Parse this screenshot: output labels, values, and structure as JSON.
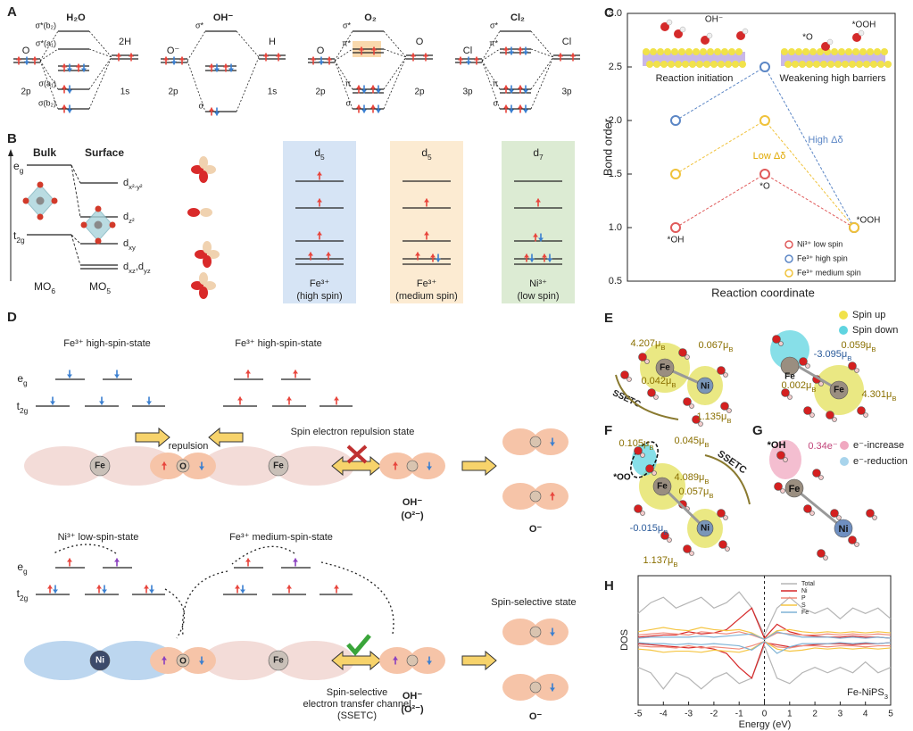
{
  "panel_labels": [
    "A",
    "B",
    "C",
    "D",
    "E",
    "F",
    "G",
    "H"
  ],
  "panel_a": [
    {
      "title": "H₂O",
      "left_atom": "O",
      "right_atom": "2H",
      "left_orbital": "2p",
      "right_orbital": "1s",
      "levels": [
        "σ*(b₂)",
        "σ*(a₁)",
        "σ(a₁)",
        "σ(b₂)"
      ]
    },
    {
      "title": "OH⁻",
      "left_atom": "O⁻",
      "right_atom": "H",
      "left_orbital": "2p",
      "right_orbital": "1s",
      "levels": [
        "σ*",
        "σ"
      ]
    },
    {
      "title": "O₂",
      "left_atom": "O",
      "right_atom": "O",
      "left_orbital": "2p",
      "right_orbital": "2p",
      "levels": [
        "σ*",
        "π*",
        "π",
        "σ"
      ]
    },
    {
      "title": "Cl₂",
      "left_atom": "Cl",
      "right_atom": "Cl",
      "left_orbital": "3p",
      "right_orbital": "3p",
      "levels": [
        "σ*",
        "π*",
        "π",
        "σ"
      ]
    }
  ],
  "panel_b": {
    "bulk": "Bulk",
    "surface": "Surface",
    "eg": [
      {
        "t": "e"
      },
      {
        "sub": "g"
      }
    ],
    "t2g": [
      {
        "t": "t"
      },
      {
        "sub": "2g"
      }
    ],
    "orbitals": [
      [
        {
          "t": "d"
        },
        {
          "sub": "x²-y²"
        }
      ],
      [
        {
          "t": "d"
        },
        {
          "sub": "z²"
        }
      ],
      [
        {
          "t": "d"
        },
        {
          "sub": "xy"
        }
      ],
      [
        {
          "t": "d"
        },
        {
          "sub": "xz"
        },
        {
          "t": ",d"
        },
        {
          "sub": "yz"
        }
      ]
    ],
    "mo6": [
      {
        "t": "MO"
      },
      {
        "sub": "6"
      }
    ],
    "mo5": [
      {
        "t": "MO"
      },
      {
        "sub": "5"
      }
    ],
    "columns": [
      {
        "config": [
          {
            "t": "d"
          },
          {
            "sub": "5"
          }
        ],
        "ion": "Fe³⁺",
        "spin": "(high spin)",
        "color": "#d6e4f5"
      },
      {
        "config": [
          {
            "t": "d"
          },
          {
            "sub": "5"
          }
        ],
        "ion": "Fe³⁺",
        "spin": "(medium spin)",
        "color": "#fcebd2"
      },
      {
        "config": [
          {
            "t": "d"
          },
          {
            "sub": "7"
          }
        ],
        "ion": "Ni³⁺",
        "spin": "(low spin)",
        "color": "#dcebd3"
      }
    ]
  },
  "chart_data": [
    {
      "type": "line",
      "ylabel": "Bond order",
      "xlabel": "Reaction coordinate",
      "categories": [
        "*OH",
        "*O",
        "*OOH"
      ],
      "ylim": [
        0.5,
        3.0
      ],
      "yticks": [
        0.5,
        {
          "value": 1,
          "label": "1.0"
        },
        1.5,
        {
          "value": 2,
          "label": "2.0"
        },
        2.5,
        {
          "value": 3,
          "label": "3.0"
        }
      ],
      "series": [
        {
          "name": "Ni³⁺ low spin",
          "color": "#e05a5a",
          "values": [
            1.0,
            1.5,
            1.0
          ]
        },
        {
          "name": "Fe³⁺ high spin",
          "color": "#5b86c5",
          "values": [
            2.0,
            2.5,
            1.0
          ]
        },
        {
          "name": "Fe³⁺ medium spin",
          "color": "#f0c23a",
          "values": [
            1.5,
            2.0,
            1.0
          ]
        }
      ],
      "annotations": [
        {
          "text": "High Δδ",
          "color": "#5b86c5"
        },
        {
          "text": "Low Δδ",
          "color": "#e0a800"
        }
      ],
      "inset_labels": [
        "OH⁻",
        "*O",
        "*OOH",
        "Reaction initiation",
        "Weakening high barriers"
      ]
    },
    {
      "type": "line",
      "ylabel": "DOS",
      "xlabel": "Energy (eV)",
      "annotation": [
        {
          "t": "Fe-NiPS"
        },
        {
          "sub": "3"
        }
      ],
      "x": [
        -5,
        -4.5,
        -4,
        -3.5,
        -3,
        -2.5,
        -2,
        -1.5,
        -1,
        -0.5,
        0,
        0.5,
        1,
        1.5,
        2,
        2.5,
        3,
        3.5,
        4,
        4.5,
        5
      ],
      "xlim": [
        -5,
        5
      ],
      "xticks": [
        -5,
        -4,
        -3,
        -2,
        -1,
        0,
        1,
        2,
        3,
        4,
        5
      ],
      "ylim": [
        -6,
        6
      ],
      "series": [
        {
          "name": "Total",
          "color": "#b5b5b5",
          "values": [
            2.5,
            3.5,
            4.0,
            3.0,
            3.5,
            4.0,
            3.0,
            3.5,
            4.5,
            3.0,
            0.5,
            3.0,
            4.0,
            3.0,
            2.5,
            3.0,
            2.0,
            3.0,
            2.5,
            3.0,
            2.0
          ],
          "values_down": [
            -2.5,
            -3.0,
            -4.5,
            -3.0,
            -3.5,
            -4.5,
            -3.5,
            -3.0,
            -4.0,
            -3.5,
            -0.5,
            -3.5,
            -4.0,
            -3.0,
            -2.5,
            -3.0,
            -2.5,
            -3.0,
            -2.0,
            -3.0,
            -2.5
          ]
        },
        {
          "name": "Ni",
          "color": "#d62728",
          "values": [
            0.3,
            0.4,
            0.5,
            0.5,
            0.8,
            0.6,
            0.7,
            1.0,
            2.0,
            3.0,
            0.2,
            1.5,
            0.8,
            0.5,
            0.4,
            0.3,
            0.3,
            0.4,
            0.3,
            0.3,
            0.2
          ],
          "values_down": [
            -0.3,
            -0.4,
            -0.5,
            -0.6,
            -0.7,
            -0.6,
            -0.8,
            -1.2,
            -2.5,
            -3.5,
            -0.2,
            -0.4,
            -0.6,
            -0.5,
            -0.4,
            -0.3,
            -0.3,
            -0.4,
            -0.3,
            -0.3,
            -0.2
          ]
        },
        {
          "name": "P",
          "color": "#f08a7a",
          "values": [
            0.5,
            0.6,
            0.7,
            0.6,
            0.5,
            0.8,
            0.7,
            0.6,
            0.8,
            0.5,
            0.1,
            0.7,
            0.6,
            0.5,
            0.5,
            0.6,
            0.5,
            0.6,
            0.5,
            0.6,
            0.5
          ],
          "values_down": [
            -0.5,
            -0.6,
            -0.6,
            -0.7,
            -0.5,
            -0.7,
            -0.6,
            -0.7,
            -0.8,
            -0.5,
            -0.1,
            -0.6,
            -0.7,
            -0.5,
            -0.5,
            -0.6,
            -0.5,
            -0.5,
            -0.6,
            -0.5,
            -0.5
          ]
        },
        {
          "name": "S",
          "color": "#f5c542",
          "values": [
            0.8,
            1.0,
            1.2,
            1.0,
            0.9,
            1.2,
            1.0,
            0.9,
            1.0,
            0.7,
            0.1,
            0.9,
            1.0,
            0.8,
            0.7,
            0.8,
            0.7,
            0.8,
            0.7,
            0.8,
            0.7
          ],
          "values_down": [
            -0.8,
            -0.9,
            -1.1,
            -1.0,
            -1.0,
            -1.1,
            -0.9,
            -1.0,
            -1.1,
            -0.8,
            -0.1,
            -0.8,
            -1.0,
            -0.9,
            -0.7,
            -0.8,
            -0.7,
            -0.8,
            -0.7,
            -0.8,
            -0.7
          ]
        },
        {
          "name": "Fe",
          "color": "#7fb3d5",
          "values": [
            0.2,
            0.3,
            0.3,
            0.3,
            0.3,
            0.4,
            0.3,
            0.4,
            0.5,
            0.6,
            0.1,
            0.8,
            0.5,
            0.3,
            0.3,
            0.3,
            0.2,
            0.3,
            0.2,
            0.3,
            0.2
          ],
          "values_down": [
            -0.2,
            -0.3,
            -0.3,
            -0.4,
            -0.3,
            -0.4,
            -0.3,
            -0.4,
            -0.5,
            -0.9,
            -0.1,
            -1.2,
            -0.6,
            -0.3,
            -0.3,
            -0.3,
            -0.2,
            -0.3,
            -0.2,
            -0.3,
            -0.2
          ]
        }
      ]
    }
  ],
  "panel_d": {
    "eg": [
      {
        "t": "e"
      },
      {
        "sub": "g"
      }
    ],
    "t2g": [
      {
        "t": "t"
      },
      {
        "sub": "2g"
      }
    ],
    "top": {
      "left_state": "Fe³⁺ high-spin-state",
      "right_state": "Fe³⁺ high-spin-state",
      "repulsion": "repulsion",
      "state": "Spin electron repulsion state",
      "metal": "Fe",
      "oxygen": "O",
      "metal2": "Fe",
      "oh": "OH⁻",
      "o2": "(O²⁻)",
      "o_minus": "O⁻"
    },
    "bottom": {
      "left_state": "Ni³⁺ low-spin-state",
      "right_state": "Fe³⁺ medium-spin-state",
      "state": "Spin-selective state",
      "metal": "Ni",
      "oxygen": "O",
      "metal2": "Fe",
      "oh": "OH⁻",
      "o2": "(O²⁻)",
      "o_minus": "O⁻",
      "channel": [
        "Spin-selective",
        "electron transfer channel",
        "(SSETC)"
      ]
    }
  },
  "panel_e": {
    "left": [
      [
        {
          "t": "4.207μ"
        },
        {
          "sub": "B"
        }
      ],
      [
        {
          "t": "0.067μ"
        },
        {
          "sub": "B"
        }
      ],
      [
        {
          "t": "0.042μ"
        },
        {
          "sub": "B"
        }
      ],
      [
        {
          "t": "1.135μ"
        },
        {
          "sub": "B"
        }
      ],
      "Fe",
      "Ni",
      "SSETC"
    ],
    "right": [
      [
        {
          "t": "-3.095μ"
        },
        {
          "sub": "B"
        }
      ],
      [
        {
          "t": "0.059μ"
        },
        {
          "sub": "B"
        }
      ],
      [
        {
          "t": "0.002μ"
        },
        {
          "sub": "B"
        }
      ],
      [
        {
          "t": "4.301μ"
        },
        {
          "sub": "B"
        }
      ],
      "Fe",
      "Fe"
    ],
    "legend": [
      "Spin up",
      "Spin down"
    ]
  },
  "panel_f": {
    "labels": [
      [
        {
          "t": "0.105μ"
        },
        {
          "sub": "B"
        }
      ],
      [
        {
          "t": "0.045μ"
        },
        {
          "sub": "B"
        }
      ],
      "*OO",
      [
        {
          "t": "4.089μ"
        },
        {
          "sub": "B"
        }
      ],
      [
        {
          "t": "0.057μ"
        },
        {
          "sub": "B"
        }
      ],
      [
        {
          "t": "-0.015μ"
        },
        {
          "sub": "B"
        }
      ],
      [
        {
          "t": "1.137μ"
        },
        {
          "sub": "B"
        }
      ],
      "Fe",
      "Ni",
      "SSETC"
    ]
  },
  "panel_g": {
    "labels": [
      "*OH",
      "0.34e⁻",
      "Fe",
      "Ni"
    ],
    "legend": [
      "e⁻-increase",
      "e⁻-reduction"
    ]
  }
}
